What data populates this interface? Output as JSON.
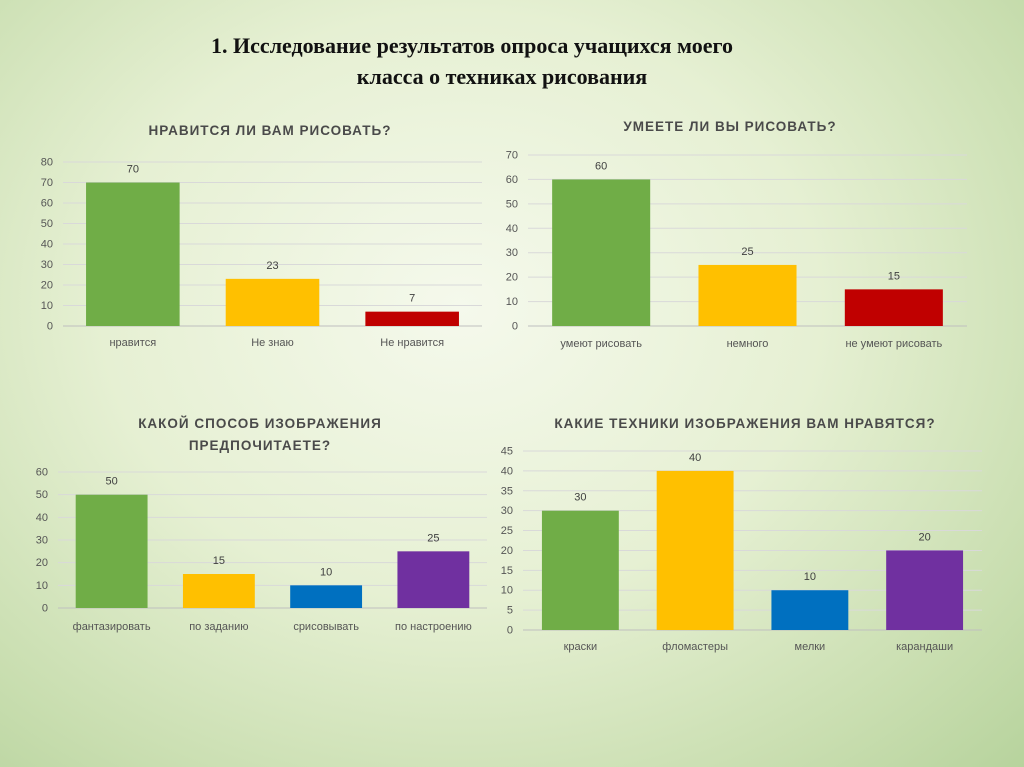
{
  "page": {
    "title_line1": "1.   Исследование результатов опроса учащихся моего",
    "title_line2": "класса о техниках рисования"
  },
  "chart_data": [
    {
      "type": "bar",
      "title": "НРАВИТСЯ ЛИ ВАМ РИСОВАТЬ?",
      "categories": [
        "нравится",
        "Не знаю",
        "Не нравится"
      ],
      "values": [
        70,
        23,
        7
      ],
      "colors": [
        "#70ad47",
        "#ffc000",
        "#c00000"
      ],
      "ylim": [
        0,
        80
      ],
      "yticks": [
        0,
        10,
        20,
        30,
        40,
        50,
        60,
        70,
        80
      ],
      "grid": true
    },
    {
      "type": "bar",
      "title": "УМЕЕТЕ ЛИ ВЫ РИСОВАТЬ?",
      "categories": [
        "умеют рисовать",
        "немного",
        "не умеют рисовать"
      ],
      "values": [
        60,
        25,
        15
      ],
      "colors": [
        "#70ad47",
        "#ffc000",
        "#c00000"
      ],
      "ylim": [
        0,
        70
      ],
      "yticks": [
        0,
        10,
        20,
        30,
        40,
        50,
        60,
        70
      ],
      "grid": true
    },
    {
      "type": "bar",
      "title_line1": "КАКОЙ СПОСОБ ИЗОБРАЖЕНИЯ",
      "title_line2": "ПРЕДПОЧИТАЕТЕ?",
      "categories": [
        "фантазировать",
        "по заданию",
        "срисовывать",
        "по настроению"
      ],
      "values": [
        50,
        15,
        10,
        25
      ],
      "colors": [
        "#70ad47",
        "#ffc000",
        "#0070c0",
        "#7030a0"
      ],
      "ylim": [
        0,
        60
      ],
      "yticks": [
        0,
        10,
        20,
        30,
        40,
        50,
        60
      ],
      "grid": true
    },
    {
      "type": "bar",
      "title": "КАКИЕ ТЕХНИКИ ИЗОБРАЖЕНИЯ ВАМ НРАВЯТСЯ?",
      "categories": [
        "краски",
        "фломастеры",
        "мелки",
        "карандаши"
      ],
      "values": [
        30,
        40,
        10,
        20
      ],
      "colors": [
        "#70ad47",
        "#ffc000",
        "#0070c0",
        "#7030a0"
      ],
      "ylim": [
        0,
        45
      ],
      "yticks": [
        0,
        5,
        10,
        15,
        20,
        25,
        30,
        35,
        40,
        45
      ],
      "grid": true
    }
  ]
}
